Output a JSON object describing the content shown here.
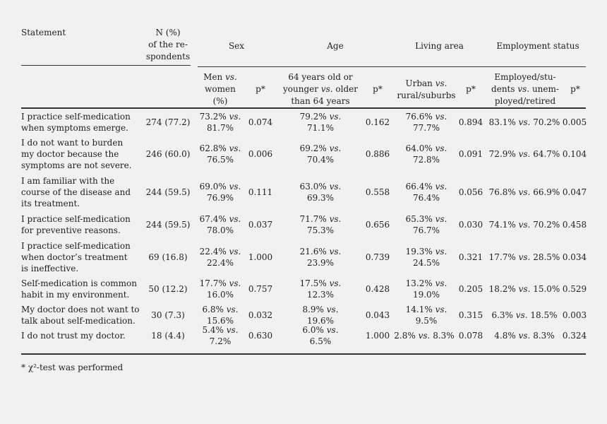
{
  "header": {
    "statement": "Statement",
    "n": [
      "N (%)",
      "of the re-",
      "spondents"
    ],
    "sex": "Sex",
    "age": "Age",
    "living": "Living area",
    "employment": "Employment status",
    "sub_sex": [
      "Men vs.",
      "women",
      "(%)"
    ],
    "sub_age": [
      "64 years old or",
      "younger vs. older",
      "than 64 years"
    ],
    "sub_living": [
      "Urban vs.",
      "rural/suburbs"
    ],
    "sub_emp": [
      "Employed/stu-",
      "dents vs. unem-",
      "ployed/retired"
    ],
    "p": "p*"
  },
  "rows": [
    {
      "statement": [
        "I practice self-medication",
        "when symptoms emerge."
      ],
      "n": "274 (77.2)",
      "sex": [
        "73.2% vs.",
        "81.7%"
      ],
      "sex_p": "0.074",
      "age": [
        "79.2% vs.",
        "71.1%"
      ],
      "age_p": "0.162",
      "living": [
        "76.6% vs.",
        "77.7%"
      ],
      "living_p": "0.894",
      "emp": "83.1% vs. 70.2%",
      "emp_p": "0.005"
    },
    {
      "statement": [
        "I do not want to burden",
        "my doctor because the",
        "symptoms are not severe."
      ],
      "n": "246 (60.0)",
      "sex": [
        "62.8% vs.",
        "76.5%"
      ],
      "sex_p": "0.006",
      "age": [
        "69.2% vs.",
        "70.4%"
      ],
      "age_p": "0.886",
      "living": [
        "64.0% vs.",
        "72.8%"
      ],
      "living_p": "0.091",
      "emp": "72.9% vs. 64.7%",
      "emp_p": "0.104"
    },
    {
      "statement": [
        "I am familiar with the",
        "course of the disease and",
        "its treatment."
      ],
      "n": "244 (59.5)",
      "sex": [
        "69.0% vs.",
        "76.9%"
      ],
      "sex_p": "0.111",
      "age": [
        "63.0% vs.",
        "69.3%"
      ],
      "age_p": "0.558",
      "living": [
        "66.4% vs.",
        "76.4%"
      ],
      "living_p": "0.056",
      "emp": "76.8% vs. 66.9%",
      "emp_p": "0.047"
    },
    {
      "statement": [
        "I practice self-medication",
        "for preventive reasons."
      ],
      "n": "244 (59.5)",
      "sex": [
        "67.4% vs.",
        "78.0%"
      ],
      "sex_p": "0.037",
      "age": [
        "71.7% vs.",
        "75.3%"
      ],
      "age_p": "0.656",
      "living": [
        "65.3% vs.",
        "76.7%"
      ],
      "living_p": "0.030",
      "emp": "74.1% vs. 70.2%",
      "emp_p": "0.458"
    },
    {
      "statement": [
        "I practice self-medication",
        "when doctor’s treatment",
        "is ineffective."
      ],
      "n": "69 (16.8)",
      "sex": [
        "22.4% vs.",
        "22.4%"
      ],
      "sex_p": "1.000",
      "age": [
        "21.6% vs.",
        "23.9%"
      ],
      "age_p": "0.739",
      "living": [
        "19.3% vs.",
        "24.5%"
      ],
      "living_p": "0.321",
      "emp": "17.7% vs. 28.5%",
      "emp_p": "0.034"
    },
    {
      "statement": [
        "Self-medication is common",
        "habit in my environment."
      ],
      "n": "50 (12.2)",
      "sex": [
        "17.7% vs.",
        "16.0%"
      ],
      "sex_p": "0.757",
      "age": [
        "17.5% vs.",
        "12.3%"
      ],
      "age_p": "0.428",
      "living": [
        "13.2% vs.",
        "19.0%"
      ],
      "living_p": "0.205",
      "emp": "18.2% vs. 15.0%",
      "emp_p": "0.529"
    },
    {
      "statement": [
        "My doctor does not want to",
        "talk about self-medication."
      ],
      "n": "30 (7.3)",
      "sex": [
        "6.8% vs.",
        "15.6%"
      ],
      "sex_p": "0.032",
      "age": [
        "8.9% vs.",
        "19.6%"
      ],
      "age_p": "0.043",
      "living": [
        "14.1% vs.",
        "9.5%"
      ],
      "living_p": "0.315",
      "emp": "6.3% vs. 18.5%",
      "emp_p": "0.003"
    },
    {
      "statement": [
        "I do not trust my doctor."
      ],
      "n": "18 (4.4)",
      "sex": [
        "5.4% vs.",
        "7.2%"
      ],
      "sex_p": "0.630",
      "age": [
        "6.0% vs.",
        "6.5%"
      ],
      "age_p": "1.000",
      "living_inline": "2.8% vs. 8.3%",
      "living_p": "0.078",
      "emp": "4.8% vs. 8.3%",
      "emp_p": "0.324"
    }
  ],
  "footnote": "* χ²-test was performed"
}
